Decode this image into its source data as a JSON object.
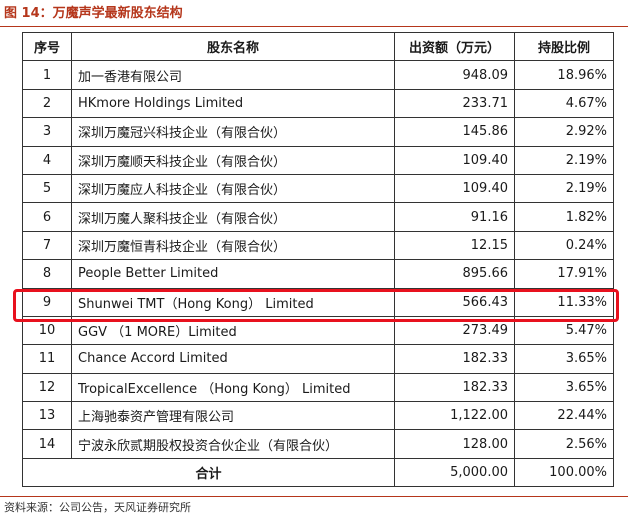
{
  "figure": {
    "title": "图 14：万魔声学最新股东结构",
    "source": "资料来源：公司公告，天风证券研究所"
  },
  "table": {
    "headers": [
      "序号",
      "股东名称",
      "出资额（万元）",
      "持股比例"
    ],
    "rows": [
      {
        "no": "1",
        "name": "加一香港有限公司",
        "amount": "948.09",
        "pct": "18.96%"
      },
      {
        "no": "2",
        "name": "HKmore Holdings Limited",
        "amount": "233.71",
        "pct": "4.67%"
      },
      {
        "no": "3",
        "name": "深圳万魔冠兴科技企业（有限合伙）",
        "amount": "145.86",
        "pct": "2.92%"
      },
      {
        "no": "4",
        "name": "深圳万魔顺天科技企业（有限合伙）",
        "amount": "109.40",
        "pct": "2.19%"
      },
      {
        "no": "5",
        "name": "深圳万魔应人科技企业（有限合伙）",
        "amount": "109.40",
        "pct": "2.19%"
      },
      {
        "no": "6",
        "name": "深圳万魔人聚科技企业（有限合伙）",
        "amount": "91.16",
        "pct": "1.82%"
      },
      {
        "no": "7",
        "name": "深圳万魔恒青科技企业（有限合伙）",
        "amount": "12.15",
        "pct": "0.24%"
      },
      {
        "no": "8",
        "name": "People Better Limited",
        "amount": "895.66",
        "pct": "17.91%"
      },
      {
        "no": "9",
        "name": "Shunwei TMT（Hong Kong） Limited",
        "amount": "566.43",
        "pct": "11.33%"
      },
      {
        "no": "10",
        "name": "GGV （1 MORE）Limited",
        "amount": "273.49",
        "pct": "5.47%"
      },
      {
        "no": "11",
        "name": "Chance Accord Limited",
        "amount": "182.33",
        "pct": "3.65%"
      },
      {
        "no": "12",
        "name": "TropicalExcellence （Hong Kong） Limited",
        "amount": "182.33",
        "pct": "3.65%"
      },
      {
        "no": "13",
        "name": "上海驰泰资产管理有限公司",
        "amount": "1,122.00",
        "pct": "22.44%"
      },
      {
        "no": "14",
        "name": "宁波永欣贰期股权投资合伙企业（有限合伙）",
        "amount": "128.00",
        "pct": "2.56%"
      }
    ],
    "total": {
      "label": "合计",
      "amount": "5,000.00",
      "pct": "100.00%"
    }
  },
  "colors": {
    "title": "#b5361b",
    "highlight": "#e8111e"
  }
}
